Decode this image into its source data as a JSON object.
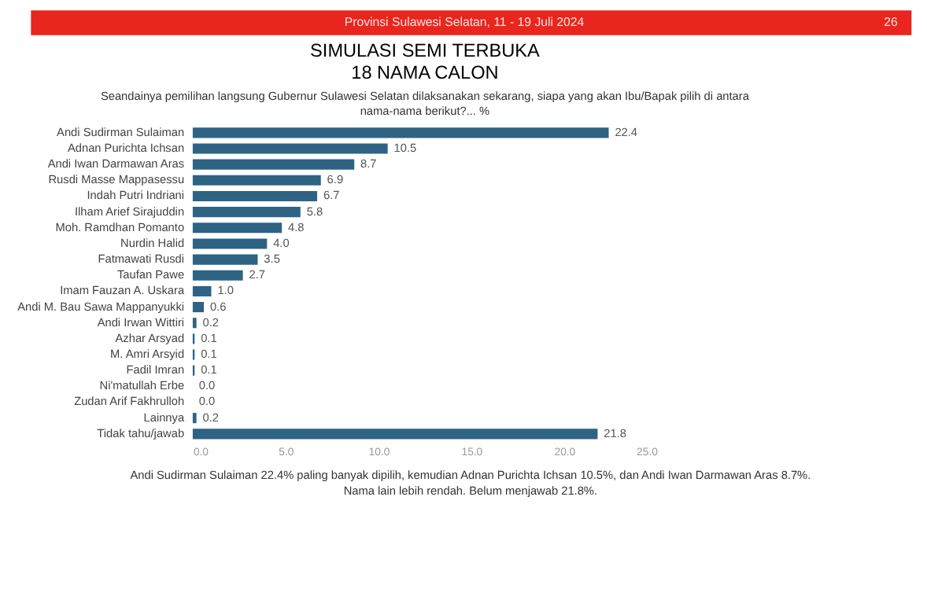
{
  "chart_data": {
    "type": "bar",
    "orientation": "horizontal",
    "title": "SIMULASI SEMI TERBUKA\n18 NAMA CALON",
    "subtitle": "Seandainya pemilihan langsung Gubernur Sulawesi Selatan dilaksanakan sekarang, siapa yang akan Ibu/Bapak pilih di antara\nnama-nama berikut?... %",
    "categories": [
      "Andi Sudirman Sulaiman",
      "Adnan Purichta Ichsan",
      "Andi Iwan Darmawan Aras",
      "Rusdi Masse Mappasessu",
      "Indah Putri Indriani",
      "Ilham Arief Sirajuddin",
      "Moh. Ramdhan Pomanto",
      "Nurdin Halid",
      "Fatmawati Rusdi",
      "Taufan Pawe",
      "Imam Fauzan A. Uskara",
      "Andi M. Bau Sawa Mappanyukki",
      "Andi Irwan Wittiri",
      "Azhar Arsyad",
      "M. Amri Arsyid",
      "Fadil Imran",
      "Ni'matullah Erbe",
      "Zudan Arif Fakhrulloh",
      "Lainnya",
      "Tidak tahu/jawab"
    ],
    "values": [
      22.4,
      10.5,
      8.7,
      6.9,
      6.7,
      5.8,
      4.8,
      4.0,
      3.5,
      2.7,
      1.0,
      0.6,
      0.2,
      0.1,
      0.1,
      0.1,
      0.0,
      0.0,
      0.2,
      21.8
    ],
    "color": "#2e6384",
    "value_labels": [
      "22.4",
      "10.5",
      "8.7",
      "6.9",
      "6.7",
      "5.8",
      "4.8",
      "4.0",
      "3.5",
      "2.7",
      "1.0",
      "0.6",
      "0.2",
      "0.1",
      "0.1",
      "0.1",
      "0.0",
      "0.0",
      "0.2",
      "21.8"
    ],
    "xlim": [
      0,
      25
    ],
    "xticks": [
      {
        "value": 0,
        "label": "0.0"
      },
      {
        "value": 5,
        "label": "5.0"
      },
      {
        "value": 10,
        "label": "10.0"
      },
      {
        "value": 15,
        "label": "15.0"
      },
      {
        "value": 20,
        "label": "20.0"
      },
      {
        "value": 25,
        "label": "25.0"
      }
    ],
    "grid": false,
    "annotations": [
      "Provinsi Sulawesi Selatan, 11 - 19 Juli 2024",
      "26",
      "Andi Sudirman Sulaiman 22.4% paling banyak dipilih, kemudian Adnan Purichta Ichsan 10.5%, dan Andi Iwan Darmawan Aras 8.7%.",
      "Nama lain lebih rendah. Belum menjawab 21.8%."
    ]
  }
}
